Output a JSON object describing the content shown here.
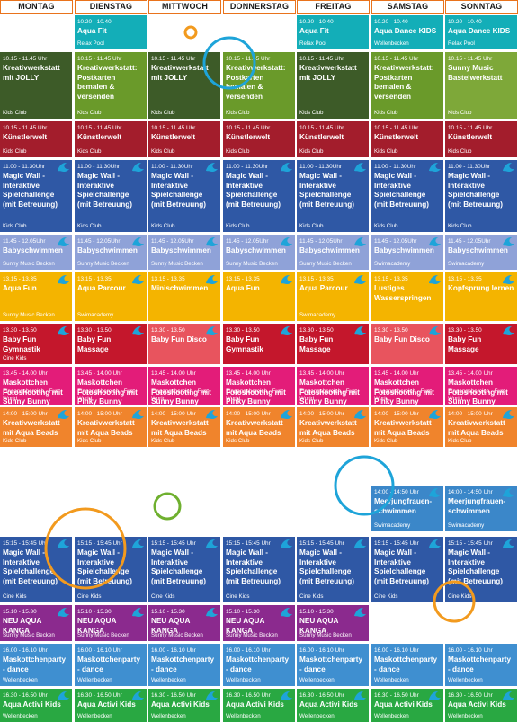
{
  "days": [
    "MONTAG",
    "DIENSTAG",
    "MITTWOCH",
    "DONNERSTAG",
    "FREITAG",
    "SAMSTAG",
    "SONNTAG"
  ],
  "colors": {
    "header_border": "#e9731c",
    "teal": "#13aeb8",
    "kreativ_green": "#6a9a2a",
    "kreativ_dark": "#3d5b28",
    "kids_green": "#7ea839",
    "kuenstler_red": "#a31d2c",
    "magic_blue": "#2f58a5",
    "baby_light": "#8fa2d8",
    "yellow": "#f4b400",
    "baby_fun_red": "#c4172c",
    "baby_fun_pink": "#e8545e",
    "maskottchen_pink": "#e31c79",
    "orange": "#f0842c",
    "blue": "#3b87c9",
    "purple": "#8b2a8e",
    "party_blue": "#3f8fd0",
    "green": "#29a842",
    "deco_orange": "#f29a1e",
    "deco_cyan": "#1ea4d9",
    "deco_green": "#6fb02f"
  },
  "rows": [
    {
      "cells": [
        null,
        {
          "time": "10.20 - 10.40",
          "title": "Aqua Fit",
          "loc": "Relax Pool",
          "color": "#13aeb8",
          "icon": false
        },
        null,
        null,
        {
          "time": "10.20 - 10.40",
          "title": "Aqua Fit",
          "loc": "Relax Pool",
          "color": "#13aeb8",
          "icon": false
        },
        {
          "time": "10.20 - 10.40",
          "title": "Aqua Dance KIDS",
          "loc": "Wellenbecken",
          "color": "#13aeb8",
          "icon": false
        },
        {
          "time": "10.20 - 10.40",
          "title": "Aqua Dance KIDS",
          "loc": "Relax Pool",
          "color": "#13aeb8",
          "icon": false
        }
      ]
    },
    {
      "cells": [
        {
          "time": "10.15 - 11.45 Uhr",
          "title": "Kreativwerkstatt mit JOLLY",
          "loc": "Kids Club",
          "color": "#3d5b28",
          "icon": false
        },
        {
          "time": "10.15 - 11.45 Uhr",
          "title": "Kreativwerkstatt: Postkarten bemalen & versenden",
          "loc": "Kids Club",
          "color": "#6a9a2a",
          "icon": false
        },
        {
          "time": "10.15 - 11.45 Uhr",
          "title": "Kreativwerkstatt mit JOLLY",
          "loc": "Kids Club",
          "color": "#3d5b28",
          "icon": false
        },
        {
          "time": "10.15 - 11.45 Uhr",
          "title": "Kreativwerkstatt: Postkarten bemalen & versenden",
          "loc": "Kids Club",
          "color": "#6a9a2a",
          "icon": false
        },
        {
          "time": "10.15 - 11.45 Uhr",
          "title": "Kreativwerkstatt mit JOLLY",
          "loc": "Kids Club",
          "color": "#3d5b28",
          "icon": false
        },
        {
          "time": "10.15 - 11.45 Uhr",
          "title": "Kreativwerkstatt: Postkarten bemalen & versenden",
          "loc": "Kids Club",
          "color": "#6a9a2a",
          "icon": false
        },
        {
          "time": "10.15 - 11.45 Uhr",
          "title": "Sunny Music Bastelwerkstatt",
          "loc": "Kids Club",
          "color": "#7ea839",
          "icon": false
        }
      ]
    },
    {
      "cells": [
        {
          "time": "10.15 - 11.45 Uhr",
          "title": "Künstlerwelt",
          "loc": "Kids Club",
          "color": "#a31d2c",
          "icon": false
        },
        {
          "time": "10.15 - 11.45 Uhr",
          "title": "Künstlerwelt",
          "loc": "Kids Club",
          "color": "#a31d2c",
          "icon": false
        },
        {
          "time": "10.15 - 11.45 Uhr",
          "title": "Künstlerwelt",
          "loc": "Kids Club",
          "color": "#a31d2c",
          "icon": false
        },
        {
          "time": "10.15 - 11.45 Uhr",
          "title": "Künstlerwelt",
          "loc": "Kids Club",
          "color": "#a31d2c",
          "icon": false
        },
        {
          "time": "10.15 - 11.45 Uhr",
          "title": "Künstlerwelt",
          "loc": "Kids Club",
          "color": "#a31d2c",
          "icon": false
        },
        {
          "time": "10.15 - 11.45 Uhr",
          "title": "Künstlerwelt",
          "loc": "Kids Club",
          "color": "#a31d2c",
          "icon": false
        },
        {
          "time": "10.15 - 11.45 Uhr",
          "title": "Künstlerwelt",
          "loc": "Kids Club",
          "color": "#a31d2c",
          "icon": false
        }
      ]
    },
    {
      "cells": [
        {
          "time": "11.00 - 11.30Uhr",
          "title": "Magic Wall - Interaktive Spielchallenge (mit Betreuung)",
          "loc": "Kids Club",
          "color": "#2f58a5",
          "icon": true
        },
        {
          "time": "11.00 - 11.30Uhr",
          "title": "Magic Wall - Interaktive Spielchallenge (mit Betreuung)",
          "loc": "Kids Club",
          "color": "#2f58a5",
          "icon": true
        },
        {
          "time": "11.00 - 11.30Uhr",
          "title": "Magic Wall - Interaktive Spielchallenge (mit Betreuung)",
          "loc": "Kids Club",
          "color": "#2f58a5",
          "icon": true
        },
        {
          "time": "11.00 - 11.30Uhr",
          "title": "Magic Wall - Interaktive Spielchallenge (mit Betreuung)",
          "loc": "Kids Club",
          "color": "#2f58a5",
          "icon": true
        },
        {
          "time": "11.00 - 11.30Uhr",
          "title": "Magic Wall - Interaktive Spielchallenge (mit Betreuung)",
          "loc": "Kids Club",
          "color": "#2f58a5",
          "icon": true
        },
        {
          "time": "11.00 - 11.30Uhr",
          "title": "Magic Wall - Interaktive Spielchallenge (mit Betreuung)",
          "loc": "Kids Club",
          "color": "#2f58a5",
          "icon": true
        },
        {
          "time": "11.00 - 11.30Uhr",
          "title": "Magic Wall - Interaktive Spielchallenge (mit Betreuung)",
          "loc": "Kids Club",
          "color": "#2f58a5",
          "icon": true
        }
      ]
    },
    {
      "cells": [
        {
          "time": "11.45 - 12.05Uhr",
          "title": "Babyschwimmen",
          "loc": "Sunny Music Becken",
          "color": "#8fa2d8",
          "icon": true
        },
        {
          "time": "11.45 - 12.05Uhr",
          "title": "Babyschwimmen",
          "loc": "Sunny Music Becken",
          "color": "#8fa2d8",
          "icon": true
        },
        {
          "time": "11.45 - 12.05Uhr",
          "title": "Babyschwimmen",
          "loc": "Sunny Music Becken",
          "color": "#8fa2d8",
          "icon": true
        },
        {
          "time": "11.45 - 12.05Uhr",
          "title": "Babyschwimmen",
          "loc": "Sunny Music Becken",
          "color": "#8fa2d8",
          "icon": true
        },
        {
          "time": "11.45 - 12.05Uhr",
          "title": "Babyschwimmen",
          "loc": "Sunny Music Becken",
          "color": "#8fa2d8",
          "icon": true
        },
        {
          "time": "11.45 - 12.05Uhr",
          "title": "Babyschwimmen",
          "loc": "Swimacademy",
          "color": "#8fa2d8",
          "icon": true
        },
        {
          "time": "11.45 - 12.05Uhr",
          "title": "Babyschwimmen",
          "loc": "Swimacademy",
          "color": "#8fa2d8",
          "icon": true
        }
      ]
    },
    {
      "cells": [
        {
          "time": "13.15 - 13.35",
          "title": "Aqua Fun",
          "loc": "Sunny Music Becken",
          "color": "#f4b400",
          "icon": true
        },
        {
          "time": "13.15 - 13.35",
          "title": "Aqua Parcour",
          "loc": "Swimacademy",
          "color": "#f4b400",
          "icon": true
        },
        {
          "time": "13.15 - 13.35",
          "title": "Minischwimmen",
          "loc": "",
          "color": "#f4b400",
          "icon": true
        },
        {
          "time": "13.15 - 13.35",
          "title": "Aqua Fun",
          "loc": "",
          "color": "#f4b400",
          "icon": true
        },
        {
          "time": "13.15 - 13.35",
          "title": "Aqua Parcour",
          "loc": "Swimacademy",
          "color": "#f4b400",
          "icon": true
        },
        {
          "time": "13.15 - 13.35",
          "title": "Lustiges Wasserspringen",
          "loc": "",
          "color": "#f4b400",
          "icon": true
        },
        {
          "time": "13.15 - 13.35",
          "title": "Kopfsprung lernen",
          "loc": "",
          "color": "#f4b400",
          "icon": true
        }
      ]
    },
    {
      "cells": [
        {
          "time": "13.30 - 13.50",
          "title": "Baby Fun Gymnastik",
          "loc": "Cine Kids",
          "color": "#c4172c",
          "icon": true
        },
        {
          "time": "13.30 - 13.50",
          "title": "Baby Fun Massage",
          "loc": "",
          "color": "#c4172c",
          "icon": true
        },
        {
          "time": "13.30 - 13.50",
          "title": "Baby Fun Disco",
          "loc": "",
          "color": "#e8545e",
          "icon": true
        },
        {
          "time": "13.30 - 13.50",
          "title": "Baby Fun Gymnastik",
          "loc": "",
          "color": "#c4172c",
          "icon": true
        },
        {
          "time": "13.30 - 13.50",
          "title": "Baby Fun Massage",
          "loc": "",
          "color": "#c4172c",
          "icon": true
        },
        {
          "time": "13.30 - 13.50",
          "title": "Baby Fun Disco",
          "loc": "",
          "color": "#e8545e",
          "icon": true
        },
        {
          "time": "13.30 - 13.50",
          "title": "Baby Fun Massage",
          "loc": "",
          "color": "#c4172c",
          "icon": true
        }
      ]
    },
    {
      "cells": [
        {
          "time": "13.45 - 14.00 Uhr",
          "title": "Maskottchen Fotoshooting mit Sunny Bunny",
          "loc": "Eingangsbereich - Fun World",
          "color": "#e31c79",
          "icon": false
        },
        {
          "time": "13.45 - 14.00 Uhr",
          "title": "Maskottchen Fotoshooting mit Pinky Bunny",
          "loc": "Eingangsbereich - Fun World",
          "color": "#e31c79",
          "icon": false
        },
        {
          "time": "13.45 - 14.00 Uhr",
          "title": "Maskottchen Fotoshooting mit Sunny Bunny",
          "loc": "Eingangsbereich - Fun World",
          "color": "#e31c79",
          "icon": false
        },
        {
          "time": "13.45 - 14.00 Uhr",
          "title": "Maskottchen Fotoshooting mit Pinky Bunny",
          "loc": "Eingangsbereich - Fun World",
          "color": "#e31c79",
          "icon": false
        },
        {
          "time": "13.45 - 14.00 Uhr",
          "title": "Maskottchen Fotoshooting mit Sunny Bunny",
          "loc": "Eingangsbereich - Fun World",
          "color": "#e31c79",
          "icon": false
        },
        {
          "time": "13.45 - 14.00 Uhr",
          "title": "Maskottchen Fotoshooting mit Pinky Bunny",
          "loc": "Eingangsbereich - Fun World",
          "color": "#e31c79",
          "icon": false
        },
        {
          "time": "13.45 - 14.00 Uhr",
          "title": "Maskottchen Fotoshooting mit Sunny Bunny",
          "loc": "Eingangsbereich - Fun World",
          "color": "#e31c79",
          "icon": false
        }
      ]
    },
    {
      "cells": [
        {
          "time": "14:00 - 15:00 Uhr",
          "title": "Kreativwerkstatt mit Aqua Beads",
          "loc": "Kids Club",
          "color": "#f0842c",
          "icon": true
        },
        {
          "time": "14:00 - 15:00 Uhr",
          "title": "Kreativwerkstatt mit Aqua Beads",
          "loc": "Kids Club",
          "color": "#f0842c",
          "icon": true
        },
        {
          "time": "14:00 - 15:00 Uhr",
          "title": "Kreativwerkstatt mit Aqua Beads",
          "loc": "Kids Club",
          "color": "#f0842c",
          "icon": true
        },
        {
          "time": "14:00 - 15:00 Uhr",
          "title": "Kreativwerkstatt mit Aqua Beads",
          "loc": "Kids Club",
          "color": "#f0842c",
          "icon": true
        },
        {
          "time": "14:00 - 15:00 Uhr",
          "title": "Kreativwerkstatt mit Aqua Beads",
          "loc": "Kids Club",
          "color": "#f0842c",
          "icon": true
        },
        {
          "time": "14:00 - 15:00 Uhr",
          "title": "Kreativwerkstatt mit Aqua Beads",
          "loc": "Kids Club",
          "color": "#f0842c",
          "icon": true
        },
        {
          "time": "14:00 - 15:00 Uhr",
          "title": "Kreativwerkstatt mit Aqua Beads",
          "loc": "Kids Club",
          "color": "#f0842c",
          "icon": true
        }
      ]
    },
    {
      "cells": [
        null,
        null,
        null,
        null,
        null,
        {
          "time": "14:00 - 14:50 Uhr",
          "title": "Meerjungfrauen-schwimmen",
          "loc": "Swimacademy",
          "color": "#3b87c9",
          "icon": true
        },
        {
          "time": "14:00 - 14:50 Uhr",
          "title": "Meerjungfrauen-schwimmen",
          "loc": "Swimacademy",
          "color": "#3b87c9",
          "icon": true
        }
      ]
    },
    {
      "cells": [
        {
          "time": "15:15 - 15:45 Uhr",
          "title": "Magic Wall - Interaktive Spielchallenge (mit Betreuung)",
          "loc": "Cine Kids",
          "color": "#2f58a5",
          "icon": true
        },
        {
          "time": "15:15 - 15:45 Uhr",
          "title": "Magic Wall - Interaktive Spielchallenge (mit Betreuung)",
          "loc": "Cine Kids",
          "color": "#2f58a5",
          "icon": true
        },
        {
          "time": "15:15 - 15:45 Uhr",
          "title": "Magic Wall - Interaktive Spielchallenge (mit Betreuung)",
          "loc": "Cine Kids",
          "color": "#2f58a5",
          "icon": true
        },
        {
          "time": "15:15 - 15:45 Uhr",
          "title": "Magic Wall - Interaktive Spielchallenge (mit Betreuung)",
          "loc": "Cine Kids",
          "color": "#2f58a5",
          "icon": true
        },
        {
          "time": "15:15 - 15:45 Uhr",
          "title": "Magic Wall - Interaktive Spielchallenge (mit Betreuung)",
          "loc": "Cine Kids",
          "color": "#2f58a5",
          "icon": true
        },
        {
          "time": "15:15 - 15:45 Uhr",
          "title": "Magic Wall - Interaktive Spielchallenge (mit Betreuung)",
          "loc": "Cine Kids",
          "color": "#2f58a5",
          "icon": true
        },
        {
          "time": "15:15 - 15:45 Uhr",
          "title": "Magic Wall - Interaktive Spielchallenge (mit Betreuung)",
          "loc": "Cine Kids",
          "color": "#2f58a5",
          "icon": true
        }
      ]
    },
    {
      "cells": [
        {
          "time": "15.10 - 15.30",
          "title": "NEU AQUA KANGA",
          "loc": "Sunny Music Becken",
          "color": "#8b2a8e",
          "icon": true
        },
        {
          "time": "15.10 - 15.30",
          "title": "NEU AQUA KANGA",
          "loc": "Sunny Music Becken",
          "color": "#8b2a8e",
          "icon": true
        },
        {
          "time": "15.10 - 15.30",
          "title": "NEU AQUA KANGA",
          "loc": "Sunny Music Becken",
          "color": "#8b2a8e",
          "icon": true
        },
        {
          "time": "15.10 - 15.30",
          "title": "NEU AQUA KANGA",
          "loc": "Sunny Music Becken",
          "color": "#8b2a8e",
          "icon": true
        },
        {
          "time": "15.10 - 15.30",
          "title": "NEU AQUA KANGA",
          "loc": "Sunny Music Becken",
          "color": "#8b2a8e",
          "icon": true
        },
        null,
        null
      ]
    },
    {
      "cells": [
        {
          "time": "16.00 - 16.10 Uhr",
          "title": "Maskottchenparty - dance",
          "loc": "Wellenbecken",
          "color": "#3f8fd0",
          "icon": false
        },
        {
          "time": "16.00 - 16.10 Uhr",
          "title": "Maskottchenparty - dance",
          "loc": "Wellenbecken",
          "color": "#3f8fd0",
          "icon": false
        },
        {
          "time": "16.00 - 16.10 Uhr",
          "title": "Maskottchenparty - dance",
          "loc": "Wellenbecken",
          "color": "#3f8fd0",
          "icon": false
        },
        {
          "time": "16.00 - 16.10 Uhr",
          "title": "Maskottchenparty - dance",
          "loc": "Wellenbecken",
          "color": "#3f8fd0",
          "icon": false
        },
        {
          "time": "16.00 - 16.10 Uhr",
          "title": "Maskottchenparty - dance",
          "loc": "Wellenbecken",
          "color": "#3f8fd0",
          "icon": false
        },
        {
          "time": "16.00 - 16.10 Uhr",
          "title": "Maskottchenparty - dance",
          "loc": "Wellenbecken",
          "color": "#3f8fd0",
          "icon": false
        },
        {
          "time": "16.00 - 16.10 Uhr",
          "title": "Maskottchenparty - dance",
          "loc": "Wellenbecken",
          "color": "#3f8fd0",
          "icon": false
        }
      ]
    },
    {
      "cells": [
        {
          "time": "16.30 - 16.50 Uhr",
          "title": "Aqua Activi Kids",
          "loc": "Wellenbecken",
          "color": "#29a842",
          "icon": true
        },
        {
          "time": "16.30 - 16.50 Uhr",
          "title": "Aqua Activi Kids",
          "loc": "Wellenbecken",
          "color": "#29a842",
          "icon": true
        },
        {
          "time": "16.30 - 16.50 Uhr",
          "title": "Aqua Activi Kids",
          "loc": "Wellenbecken",
          "color": "#29a842",
          "icon": true
        },
        {
          "time": "16.30 - 16.50 Uhr",
          "title": "Aqua Activi Kids",
          "loc": "Wellenbecken",
          "color": "#29a842",
          "icon": true
        },
        {
          "time": "16.30 - 16.50 Uhr",
          "title": "Aqua Activi Kids",
          "loc": "Wellenbecken",
          "color": "#29a842",
          "icon": true
        },
        {
          "time": "16.30 - 16.50 Uhr",
          "title": "Aqua Activi Kids",
          "loc": "Wellenbecken",
          "color": "#29a842",
          "icon": true
        },
        {
          "time": "16.30 - 16.50 Uhr",
          "title": "Aqua Activi Kids",
          "loc": "Wellenbecken",
          "color": "#29a842",
          "icon": true
        }
      ]
    }
  ]
}
